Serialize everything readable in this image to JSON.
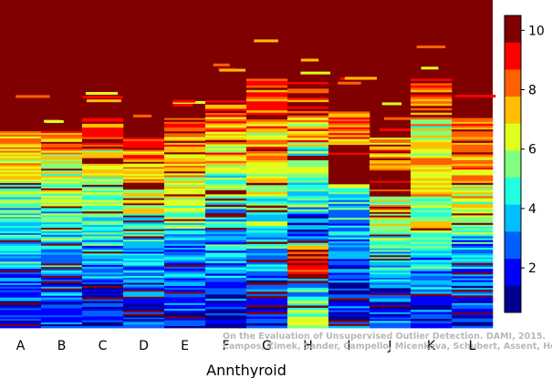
{
  "chart_data": {
    "type": "heatmap",
    "title": "",
    "xlabel": "Annthyroid",
    "ylabel": "",
    "categories": [
      "A",
      "B",
      "C",
      "D",
      "E",
      "F",
      "G",
      "H",
      "I",
      "J",
      "K",
      "L"
    ],
    "colorbar": {
      "min": 0.5,
      "max": 10.5,
      "ticks": [
        2,
        4,
        6,
        8,
        10
      ],
      "colors": [
        "#00008f",
        "#0000ff",
        "#0060ff",
        "#00bfff",
        "#20ffdf",
        "#80ff80",
        "#dfff20",
        "#ffbf00",
        "#ff6000",
        "#ff0000",
        "#800000"
      ]
    },
    "columns": [
      {
        "name": "A",
        "dark_red_above": 0.4,
        "profile": [
          [
            0.4,
            8
          ],
          [
            0.47,
            7
          ],
          [
            0.55,
            6
          ],
          [
            0.63,
            5
          ],
          [
            0.72,
            4
          ],
          [
            0.82,
            3
          ],
          [
            0.92,
            2
          ],
          [
            1.0,
            1
          ]
        ]
      },
      {
        "name": "B",
        "dark_red_above": 0.4,
        "profile": [
          [
            0.4,
            8
          ],
          [
            0.47,
            7
          ],
          [
            0.56,
            6
          ],
          [
            0.64,
            5
          ],
          [
            0.73,
            4
          ],
          [
            0.83,
            3
          ],
          [
            0.92,
            2
          ],
          [
            1.0,
            1
          ]
        ]
      },
      {
        "name": "C",
        "dark_red_above": 0.36,
        "profile": [
          [
            0.36,
            9
          ],
          [
            0.45,
            8
          ],
          [
            0.54,
            7
          ],
          [
            0.64,
            5
          ],
          [
            0.75,
            4
          ],
          [
            0.86,
            2
          ],
          [
            1.0,
            1
          ]
        ]
      },
      {
        "name": "D",
        "dark_red_above": 0.42,
        "profile": [
          [
            0.42,
            9
          ],
          [
            0.5,
            8
          ],
          [
            0.58,
            7
          ],
          [
            0.66,
            6
          ],
          [
            0.74,
            4
          ],
          [
            0.84,
            3
          ],
          [
            0.92,
            2
          ],
          [
            1.0,
            1
          ]
        ]
      },
      {
        "name": "E",
        "dark_red_above": 0.36,
        "profile": [
          [
            0.36,
            9
          ],
          [
            0.45,
            8
          ],
          [
            0.55,
            7
          ],
          [
            0.63,
            6
          ],
          [
            0.7,
            5
          ],
          [
            0.79,
            3
          ],
          [
            0.9,
            2
          ],
          [
            1.0,
            1
          ]
        ]
      },
      {
        "name": "F",
        "dark_red_above": 0.3,
        "profile": [
          [
            0.3,
            9
          ],
          [
            0.4,
            8
          ],
          [
            0.5,
            7
          ],
          [
            0.6,
            5
          ],
          [
            0.7,
            4
          ],
          [
            0.8,
            3
          ],
          [
            0.9,
            2
          ],
          [
            1.0,
            1
          ]
        ]
      },
      {
        "name": "G",
        "dark_red_above": 0.24,
        "profile": [
          [
            0.24,
            9
          ],
          [
            0.36,
            8
          ],
          [
            0.48,
            7
          ],
          [
            0.6,
            6
          ],
          [
            0.72,
            4
          ],
          [
            0.84,
            3
          ],
          [
            0.93,
            2
          ],
          [
            1.0,
            1
          ]
        ]
      },
      {
        "name": "H",
        "dark_red_above": 0.25,
        "profile": [
          [
            0.25,
            10
          ],
          [
            0.35,
            9
          ],
          [
            0.45,
            7
          ],
          [
            0.55,
            5
          ],
          [
            0.65,
            4
          ],
          [
            0.75,
            2
          ],
          [
            0.85,
            9
          ],
          [
            0.92,
            3
          ],
          [
            1.0,
            5
          ]
        ]
      },
      {
        "name": "I",
        "dark_red_above": 0.34,
        "profile": [
          [
            0.34,
            9
          ],
          [
            0.44,
            8
          ],
          [
            0.56,
            11
          ],
          [
            0.64,
            4
          ],
          [
            0.74,
            3
          ],
          [
            0.86,
            2
          ],
          [
            1.0,
            1
          ]
        ]
      },
      {
        "name": "J",
        "dark_red_above": 0.42,
        "profile": [
          [
            0.42,
            8
          ],
          [
            0.52,
            7
          ],
          [
            0.6,
            10
          ],
          [
            0.7,
            6
          ],
          [
            0.78,
            4
          ],
          [
            0.88,
            3
          ],
          [
            1.0,
            2
          ]
        ]
      },
      {
        "name": "K",
        "dark_red_above": 0.24,
        "profile": [
          [
            0.24,
            9
          ],
          [
            0.36,
            8
          ],
          [
            0.48,
            6
          ],
          [
            0.6,
            7
          ],
          [
            0.72,
            5
          ],
          [
            0.82,
            3
          ],
          [
            0.92,
            2
          ],
          [
            1.0,
            1
          ]
        ]
      },
      {
        "name": "L",
        "dark_red_above": 0.36,
        "profile": [
          [
            0.36,
            9
          ],
          [
            0.46,
            8
          ],
          [
            0.56,
            7
          ],
          [
            0.64,
            6
          ],
          [
            0.72,
            5
          ],
          [
            0.82,
            3
          ],
          [
            0.92,
            2
          ],
          [
            1.0,
            1
          ]
        ]
      }
    ]
  },
  "watermark": {
    "line1": "On the Evaluation of Unsupervised Outlier Detection. DAMI, 2015.",
    "line2": "Campos, Zimek, Sander, Campello, Micenkova, Schubert, Assent, Houle"
  }
}
